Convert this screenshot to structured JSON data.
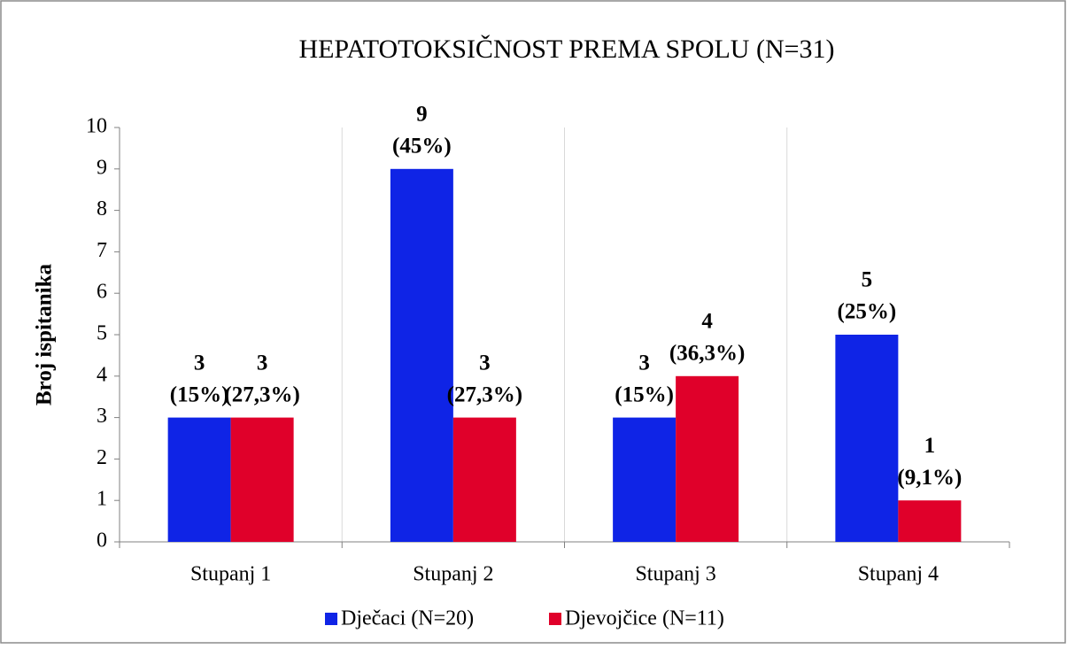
{
  "chart_data": {
    "type": "bar",
    "title": "HEPATOTOKSIČNOST PREMA SPOLU (N=31)",
    "y_label": "Broj ispitanika",
    "categories": [
      "Stupanj 1",
      "Stupanj 2",
      "Stupanj 3",
      "Stupanj 4"
    ],
    "series": [
      {
        "name": "Dječaci (N=20)",
        "color": "#0f24e6",
        "values": [
          3,
          9,
          3,
          5
        ],
        "percent_labels": [
          "(15%)",
          "(45%)",
          "(15%)",
          "(25%)"
        ]
      },
      {
        "name": "Djevojčice (N=11)",
        "color": "#e0002a",
        "values": [
          3,
          3,
          4,
          1
        ],
        "percent_labels": [
          "(27,3%)",
          "(27,3%)",
          "(36,3%)",
          "(9,1%)"
        ]
      }
    ],
    "ylim": [
      0,
      10
    ],
    "yticks": [
      0,
      1,
      2,
      3,
      4,
      5,
      6,
      7,
      8,
      9,
      10
    ],
    "legend": "bottom"
  }
}
